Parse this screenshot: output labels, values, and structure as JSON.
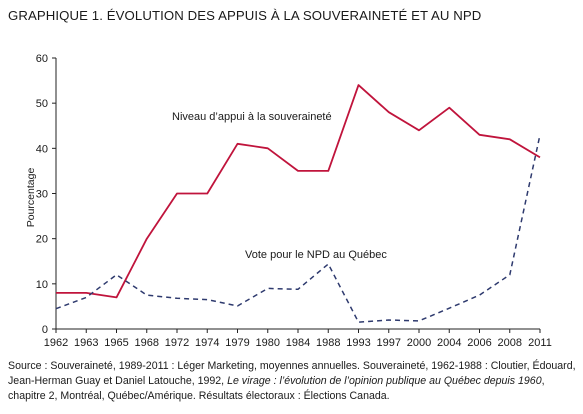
{
  "title": "GRAPHIQUE 1. ÉVOLUTION DES APPUIS À LA SOUVERAINETÉ ET AU NPD",
  "chart_data": {
    "type": "line",
    "title": "GRAPHIQUE 1. ÉVOLUTION DES APPUIS À LA SOUVERAINETÉ ET AU NPD",
    "xlabel": "",
    "ylabel": "Pourcentage",
    "ylim": [
      0,
      60
    ],
    "yticks": [
      0,
      10,
      20,
      30,
      40,
      50,
      60
    ],
    "categories": [
      "1962",
      "1963",
      "1965",
      "1968",
      "1972",
      "1974",
      "1979",
      "1980",
      "1984",
      "1988",
      "1993",
      "1997",
      "2000",
      "2004",
      "2006",
      "2008",
      "2011"
    ],
    "grid": false,
    "legend": "inline labels",
    "series": [
      {
        "name": "Niveau d’appui à la souveraineté",
        "style": "solid",
        "color": "#c0143c",
        "values": [
          8,
          8,
          7,
          20,
          30,
          30,
          41,
          40,
          35,
          35,
          54,
          48,
          44,
          49,
          43,
          42,
          38
        ]
      },
      {
        "name": "Vote pour le NPD au Québec",
        "style": "dashed",
        "color": "#2e3a6e",
        "values": [
          4.5,
          7,
          12,
          7.5,
          6.8,
          6.5,
          5.1,
          9,
          8.8,
          14.4,
          1.5,
          2,
          1.8,
          4.6,
          7.5,
          12,
          43
        ]
      }
    ]
  },
  "source": {
    "part1": "Source : Souveraineté, 1989-2011 : Léger Marketing, moyennes annuelles. Souveraineté, 1962-1988 : Cloutier, Édouard, Jean-Herman Guay et Daniel Latouche, 1992, ",
    "italic": "Le virage : l’évolution de l’opinion publique au Québec depuis 1960",
    "part2": ", chapitre 2, Montréal, Québec/Amérique. Résultats électoraux : Élections Canada."
  }
}
